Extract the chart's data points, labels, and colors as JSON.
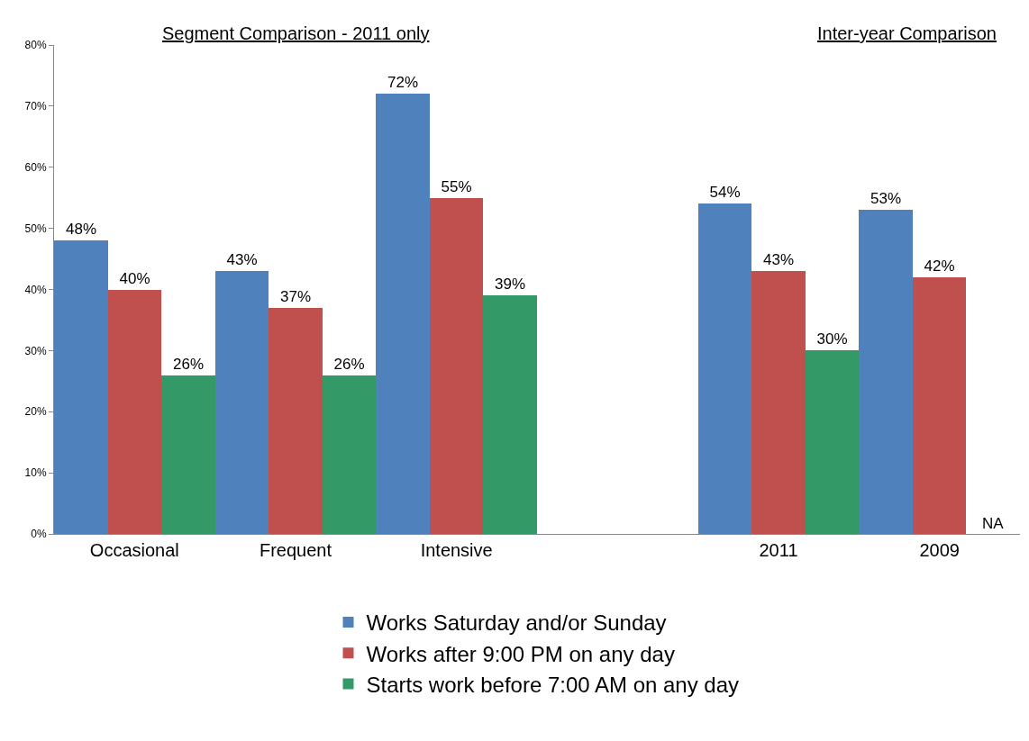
{
  "chart_data": {
    "type": "bar",
    "categories": [
      "Occasional",
      "Frequent",
      "Intensive",
      null,
      "2011",
      "2009"
    ],
    "series": [
      {
        "name": "Works Saturday and/or Sunday",
        "color": "#4f81bd",
        "values": [
          48,
          43,
          72,
          null,
          54,
          53
        ],
        "value_labels": [
          "48%",
          "43%",
          "72%",
          null,
          "54%",
          "53%"
        ]
      },
      {
        "name": "Works after 9:00 PM on any day",
        "color": "#c0504d",
        "values": [
          40,
          37,
          55,
          null,
          43,
          42
        ],
        "value_labels": [
          "40%",
          "37%",
          "55%",
          null,
          "43%",
          "42%"
        ]
      },
      {
        "name": "Starts work before 7:00 AM on any day",
        "color": "#339966",
        "values": [
          26,
          26,
          39,
          null,
          30,
          null
        ],
        "value_labels": [
          "26%",
          "26%",
          "39%",
          null,
          "30%",
          null
        ]
      }
    ],
    "ylim": [
      0,
      80
    ],
    "yticks": [
      {
        "value": 0,
        "label": "0%"
      },
      {
        "value": 10,
        "label": "10%"
      },
      {
        "value": 20,
        "label": "20%"
      },
      {
        "value": 30,
        "label": "30%"
      },
      {
        "value": 40,
        "label": "40%"
      },
      {
        "value": 50,
        "label": "50%"
      },
      {
        "value": 60,
        "label": "60%"
      },
      {
        "value": 70,
        "label": "70%"
      },
      {
        "value": 80,
        "label": "80%"
      }
    ],
    "annotations": [
      "Segment Comparison - 2011 only",
      "Inter-year Comparison",
      {
        "text": "NA",
        "x": "2009",
        "y": 0
      }
    ],
    "legend": "bottom"
  }
}
